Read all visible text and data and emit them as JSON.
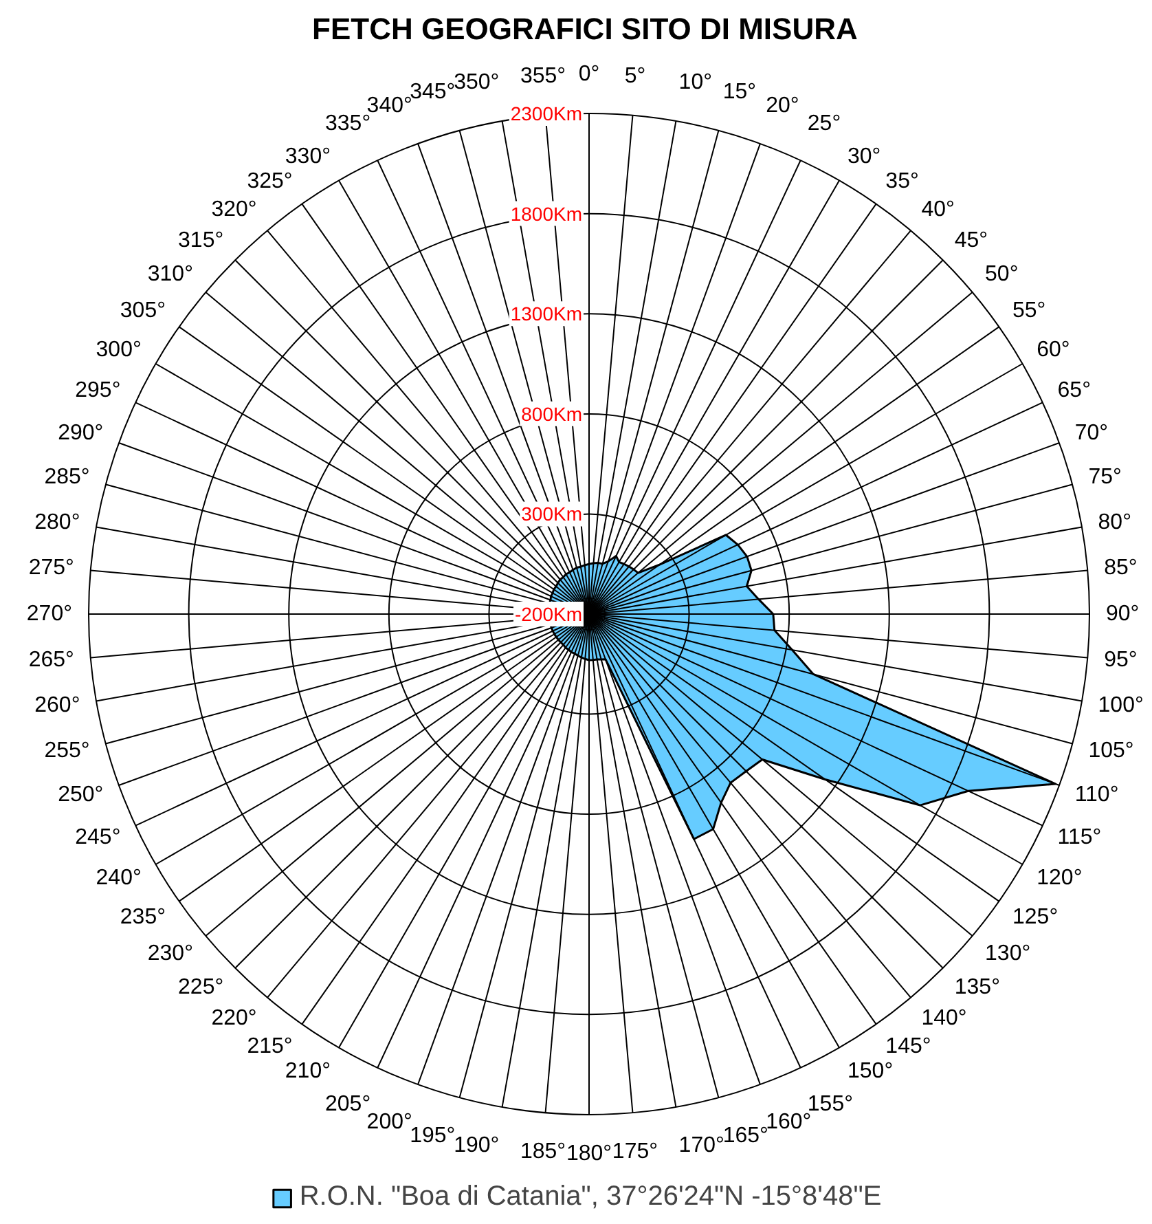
{
  "chart_data": {
    "type": "radar",
    "title": "FETCH  GEOGRAFICI SITO DI MISURA",
    "categories": [
      "0°",
      "5°",
      "10°",
      "15°",
      "20°",
      "25°",
      "30°",
      "35°",
      "40°",
      "45°",
      "50°",
      "55°",
      "60°",
      "65°",
      "70°",
      "75°",
      "80°",
      "85°",
      "90°",
      "95°",
      "100°",
      "105°",
      "110°",
      "115°",
      "120°",
      "125°",
      "130°",
      "135°",
      "140°",
      "145°",
      "150°",
      "155°",
      "160°",
      "165°",
      "170°",
      "175°",
      "180°",
      "185°",
      "190°",
      "195°",
      "200°",
      "205°",
      "210°",
      "215°",
      "220°",
      "225°",
      "230°",
      "235°",
      "240°",
      "245°",
      "250°",
      "255°",
      "260°",
      "265°",
      "270°",
      "275°",
      "280°",
      "285°",
      "290°",
      "295°",
      "300°",
      "305°",
      "310°",
      "315°",
      "320°",
      "325°",
      "330°",
      "335°",
      "340°",
      "345°",
      "350°",
      "355°"
    ],
    "series": [
      {
        "name": "R.O.N. \"Boa di Catania\", 37°26'24\"N -15°8'48\"E",
        "color": "#66ccff",
        "values": [
          50,
          55,
          60,
          60,
          80,
          120,
          100,
          105,
          110,
          115,
          120,
          230,
          590,
          620,
          640,
          640,
          600,
          650,
          720,
          730,
          830,
          960,
          2280,
          1890,
          1710,
          1240,
          930,
          910,
          900,
          950,
          1040,
          1040,
          40,
          35,
          30,
          30,
          30,
          25,
          20,
          15,
          10,
          10,
          5,
          5,
          0,
          0,
          0,
          0,
          0,
          0,
          0,
          0,
          0,
          0,
          0,
          0,
          0,
          5,
          5,
          10,
          10,
          15,
          15,
          20,
          25,
          25,
          30,
          30,
          35,
          40,
          40,
          45
        ]
      }
    ],
    "ylim": [
      -200,
      2300
    ],
    "yticks": [
      {
        "value": -200,
        "label": "-200Km"
      },
      {
        "value": 300,
        "label": "300Km"
      },
      {
        "value": 800,
        "label": "800Km"
      },
      {
        "value": 1300,
        "label": "1300Km"
      },
      {
        "value": 1800,
        "label": "1800Km"
      },
      {
        "value": 2300,
        "label": "2300Km"
      }
    ],
    "grid": true,
    "legend": "bottom"
  }
}
